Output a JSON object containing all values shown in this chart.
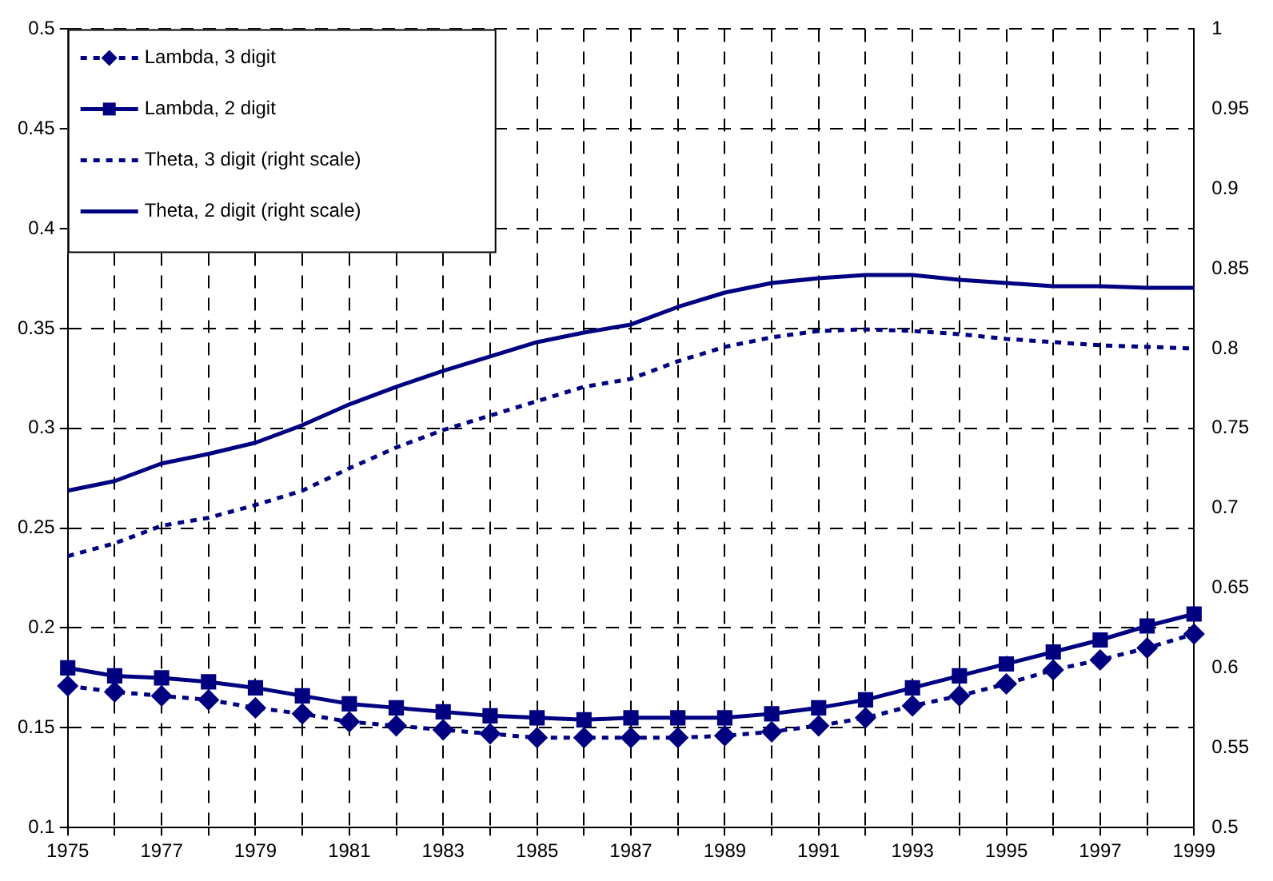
{
  "chart_data": {
    "type": "line",
    "categories": [
      "1975",
      null,
      "1977",
      null,
      "1979",
      null,
      "1981",
      null,
      "1983",
      null,
      "1985",
      null,
      "1987",
      null,
      "1989",
      null,
      "1991",
      null,
      "1993",
      null,
      "1995",
      null,
      "1997",
      null,
      "1999"
    ],
    "series": [
      {
        "name": "Lambda, 3 digit",
        "color": "#000080",
        "marker": "diamond",
        "line_style": "dotted",
        "values": [
          0.171,
          0.168,
          0.166,
          0.164,
          0.16,
          0.157,
          0.153,
          0.151,
          0.149,
          0.147,
          0.145,
          0.145,
          0.145,
          0.145,
          0.146,
          0.148,
          0.151,
          0.155,
          0.161,
          0.166,
          0.172,
          0.179,
          0.184,
          0.19,
          0.197
        ]
      },
      {
        "name": "Lambda, 2 digit",
        "color": "#000080",
        "marker": "square",
        "line_style": "solid",
        "values": [
          0.18,
          0.176,
          0.175,
          0.173,
          0.17,
          0.166,
          0.162,
          0.16,
          0.158,
          0.156,
          0.155,
          0.154,
          0.155,
          0.155,
          0.155,
          0.157,
          0.16,
          0.164,
          0.17,
          0.176,
          0.182,
          0.188,
          0.194,
          0.201,
          0.207
        ]
      },
      {
        "name": "Theta, 3 digit (right scale)",
        "axis": "y2",
        "color": "#000080",
        "marker": "none",
        "line_style": "dotted",
        "values": [
          0.67,
          0.678,
          0.689,
          0.694,
          0.702,
          0.711,
          0.725,
          0.738,
          0.749,
          0.758,
          0.767,
          0.776,
          0.781,
          0.792,
          0.801,
          0.807,
          0.811,
          0.812,
          0.811,
          0.809,
          0.806,
          0.804,
          0.802,
          0.801,
          0.8
        ]
      },
      {
        "name": "Theta, 2 digit (right scale)",
        "axis": "y2",
        "color": "#000080",
        "marker": "none",
        "line_style": "solid",
        "values": [
          0.711,
          0.717,
          0.728,
          0.734,
          0.741,
          0.752,
          0.765,
          0.776,
          0.786,
          0.795,
          0.804,
          0.81,
          0.815,
          0.826,
          0.835,
          0.841,
          0.844,
          0.846,
          0.846,
          0.843,
          0.841,
          0.839,
          0.839,
          0.838,
          0.838
        ]
      }
    ],
    "ylim": [
      0.1,
      0.5
    ],
    "yticks": [
      0.1,
      0.15,
      0.2,
      0.25,
      0.3,
      0.35,
      0.4,
      0.45,
      0.5
    ],
    "y2lim": [
      0.5,
      1
    ],
    "y2ticks": [
      0.5,
      0.55,
      0.6,
      0.65,
      0.7,
      0.75,
      0.8,
      0.85,
      0.9,
      0.95,
      1
    ],
    "grid": true,
    "legend": "top left"
  }
}
